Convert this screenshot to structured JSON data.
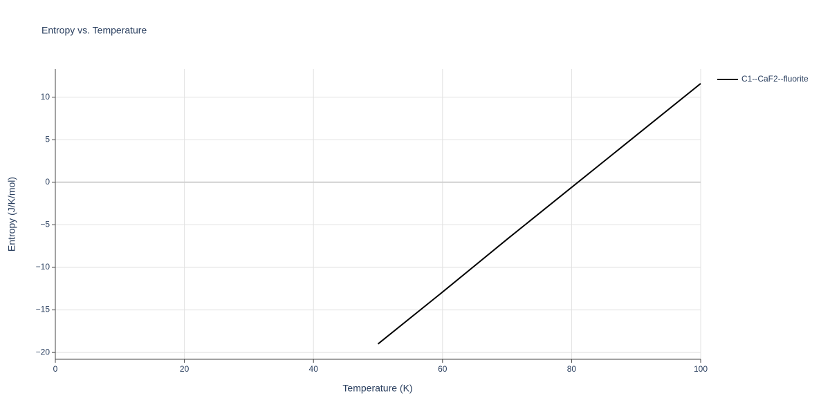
{
  "chart_data": {
    "type": "line",
    "title": "Entropy vs. Temperature",
    "x_label": "Temperature (K)",
    "y_label": "Entropy (J/K/mol)",
    "x": [
      50,
      60,
      70,
      80,
      90,
      100
    ],
    "series": [
      {
        "name": "C1--CaF2--fluorite",
        "color": "#000000",
        "values": [
          -19.0,
          -12.9,
          -6.7,
          -0.6,
          5.5,
          11.6
        ]
      }
    ],
    "xlim": [
      0,
      100
    ],
    "xticks": [
      0,
      20,
      40,
      60,
      80,
      100
    ],
    "ylim": [
      -20.8,
      13.3
    ],
    "yticks": [
      {
        "value": -20,
        "label": "−20"
      },
      {
        "value": -15,
        "label": "−15"
      },
      {
        "value": -10,
        "label": "−10"
      },
      {
        "value": -5,
        "label": "−5"
      },
      0,
      5,
      10
    ],
    "grid": true,
    "legend": "right"
  }
}
